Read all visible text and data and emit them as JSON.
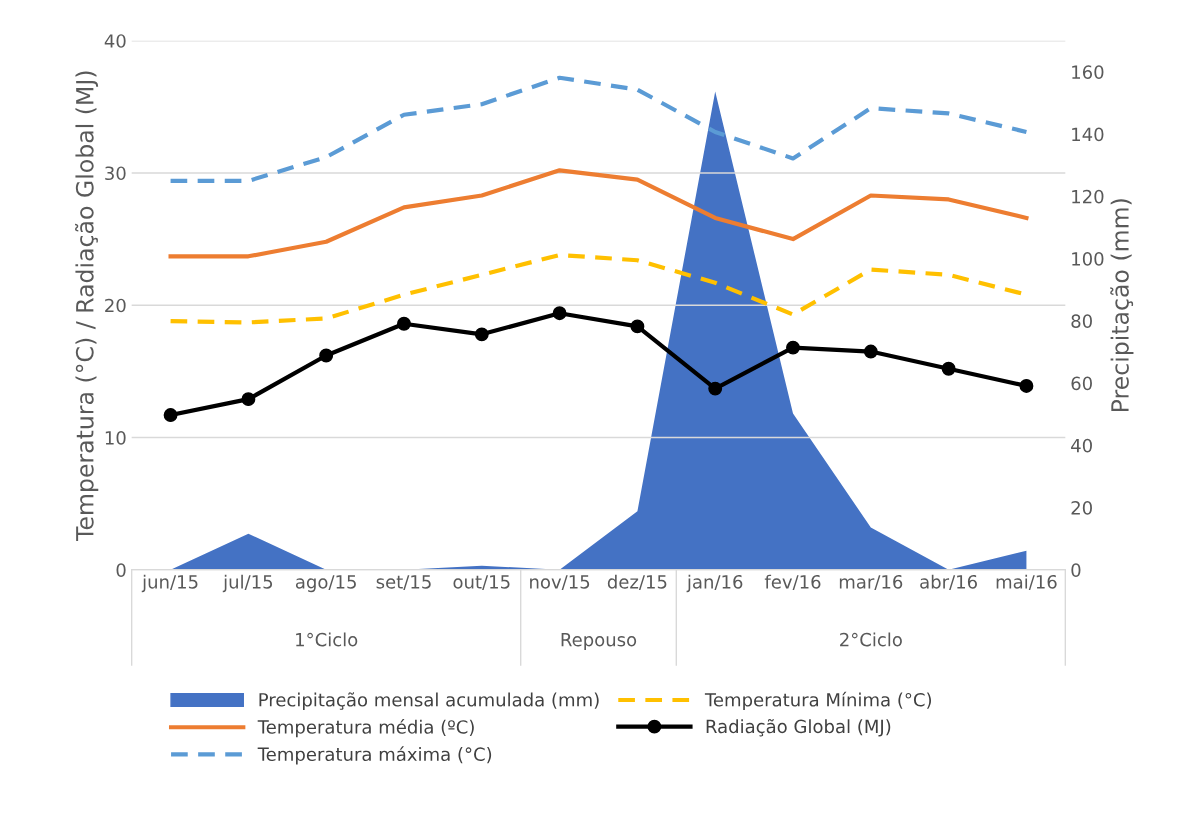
{
  "chart_data": {
    "type": "line",
    "ylabel": "Temperatura (°C) / Radiação Global (MJ)",
    "y2label": "Precipitação (mm)",
    "categories": [
      "jun/15",
      "jul/15",
      "ago/15",
      "set/15",
      "out/15",
      "nov/15",
      "dez/15",
      "jan/16",
      "fev/16",
      "mar/16",
      "abr/16",
      "mai/16"
    ],
    "annotations": [
      "1°Ciclo",
      "Repouso",
      "2°Ciclo"
    ],
    "ylim": [
      0,
      40
    ],
    "yticks": [
      0,
      10,
      20,
      30,
      40
    ],
    "y2lim": [
      0,
      170
    ],
    "y2ticks": [
      0,
      20,
      40,
      60,
      80,
      100,
      120,
      140,
      160
    ],
    "grid": "y",
    "legend": "bottom",
    "series": [
      {
        "name": "Precipitação mensal acumulada (mm)",
        "type": "area",
        "axis": "y2",
        "color": "#4472c4",
        "values": [
          0,
          11.6,
          0,
          0,
          1.3,
          0,
          18.8,
          153.7,
          50.2,
          13.6,
          0,
          6.1
        ]
      },
      {
        "name": "Temperatura média (ºC)",
        "color": "#ed7d31",
        "line_style": "solid",
        "marker": "none",
        "values": [
          23.7,
          23.7,
          24.8,
          27.4,
          28.3,
          30.2,
          29.5,
          26.6,
          25.0,
          28.3,
          28.0,
          26.6
        ]
      },
      {
        "name": "Temperatura máxima (°C)",
        "color": "#5b9bd5",
        "line_style": "dashed",
        "marker": "none",
        "values": [
          29.4,
          29.4,
          31.2,
          34.4,
          35.2,
          37.2,
          36.3,
          33.1,
          31.1,
          34.9,
          34.5,
          33.1
        ]
      },
      {
        "name": "Temperatura Mínima (°C)",
        "color": "#ffc000",
        "line_style": "dashed",
        "marker": "none",
        "values": [
          18.8,
          18.7,
          19.0,
          20.8,
          22.3,
          23.8,
          23.4,
          21.7,
          19.3,
          22.7,
          22.3,
          20.8
        ]
      },
      {
        "name": "Radiação Global (MJ)",
        "color": "#000000",
        "line_style": "solid",
        "marker": "circle",
        "values": [
          11.7,
          12.9,
          16.2,
          18.6,
          17.8,
          19.4,
          18.4,
          13.7,
          16.8,
          16.5,
          15.2,
          13.9
        ]
      }
    ]
  }
}
